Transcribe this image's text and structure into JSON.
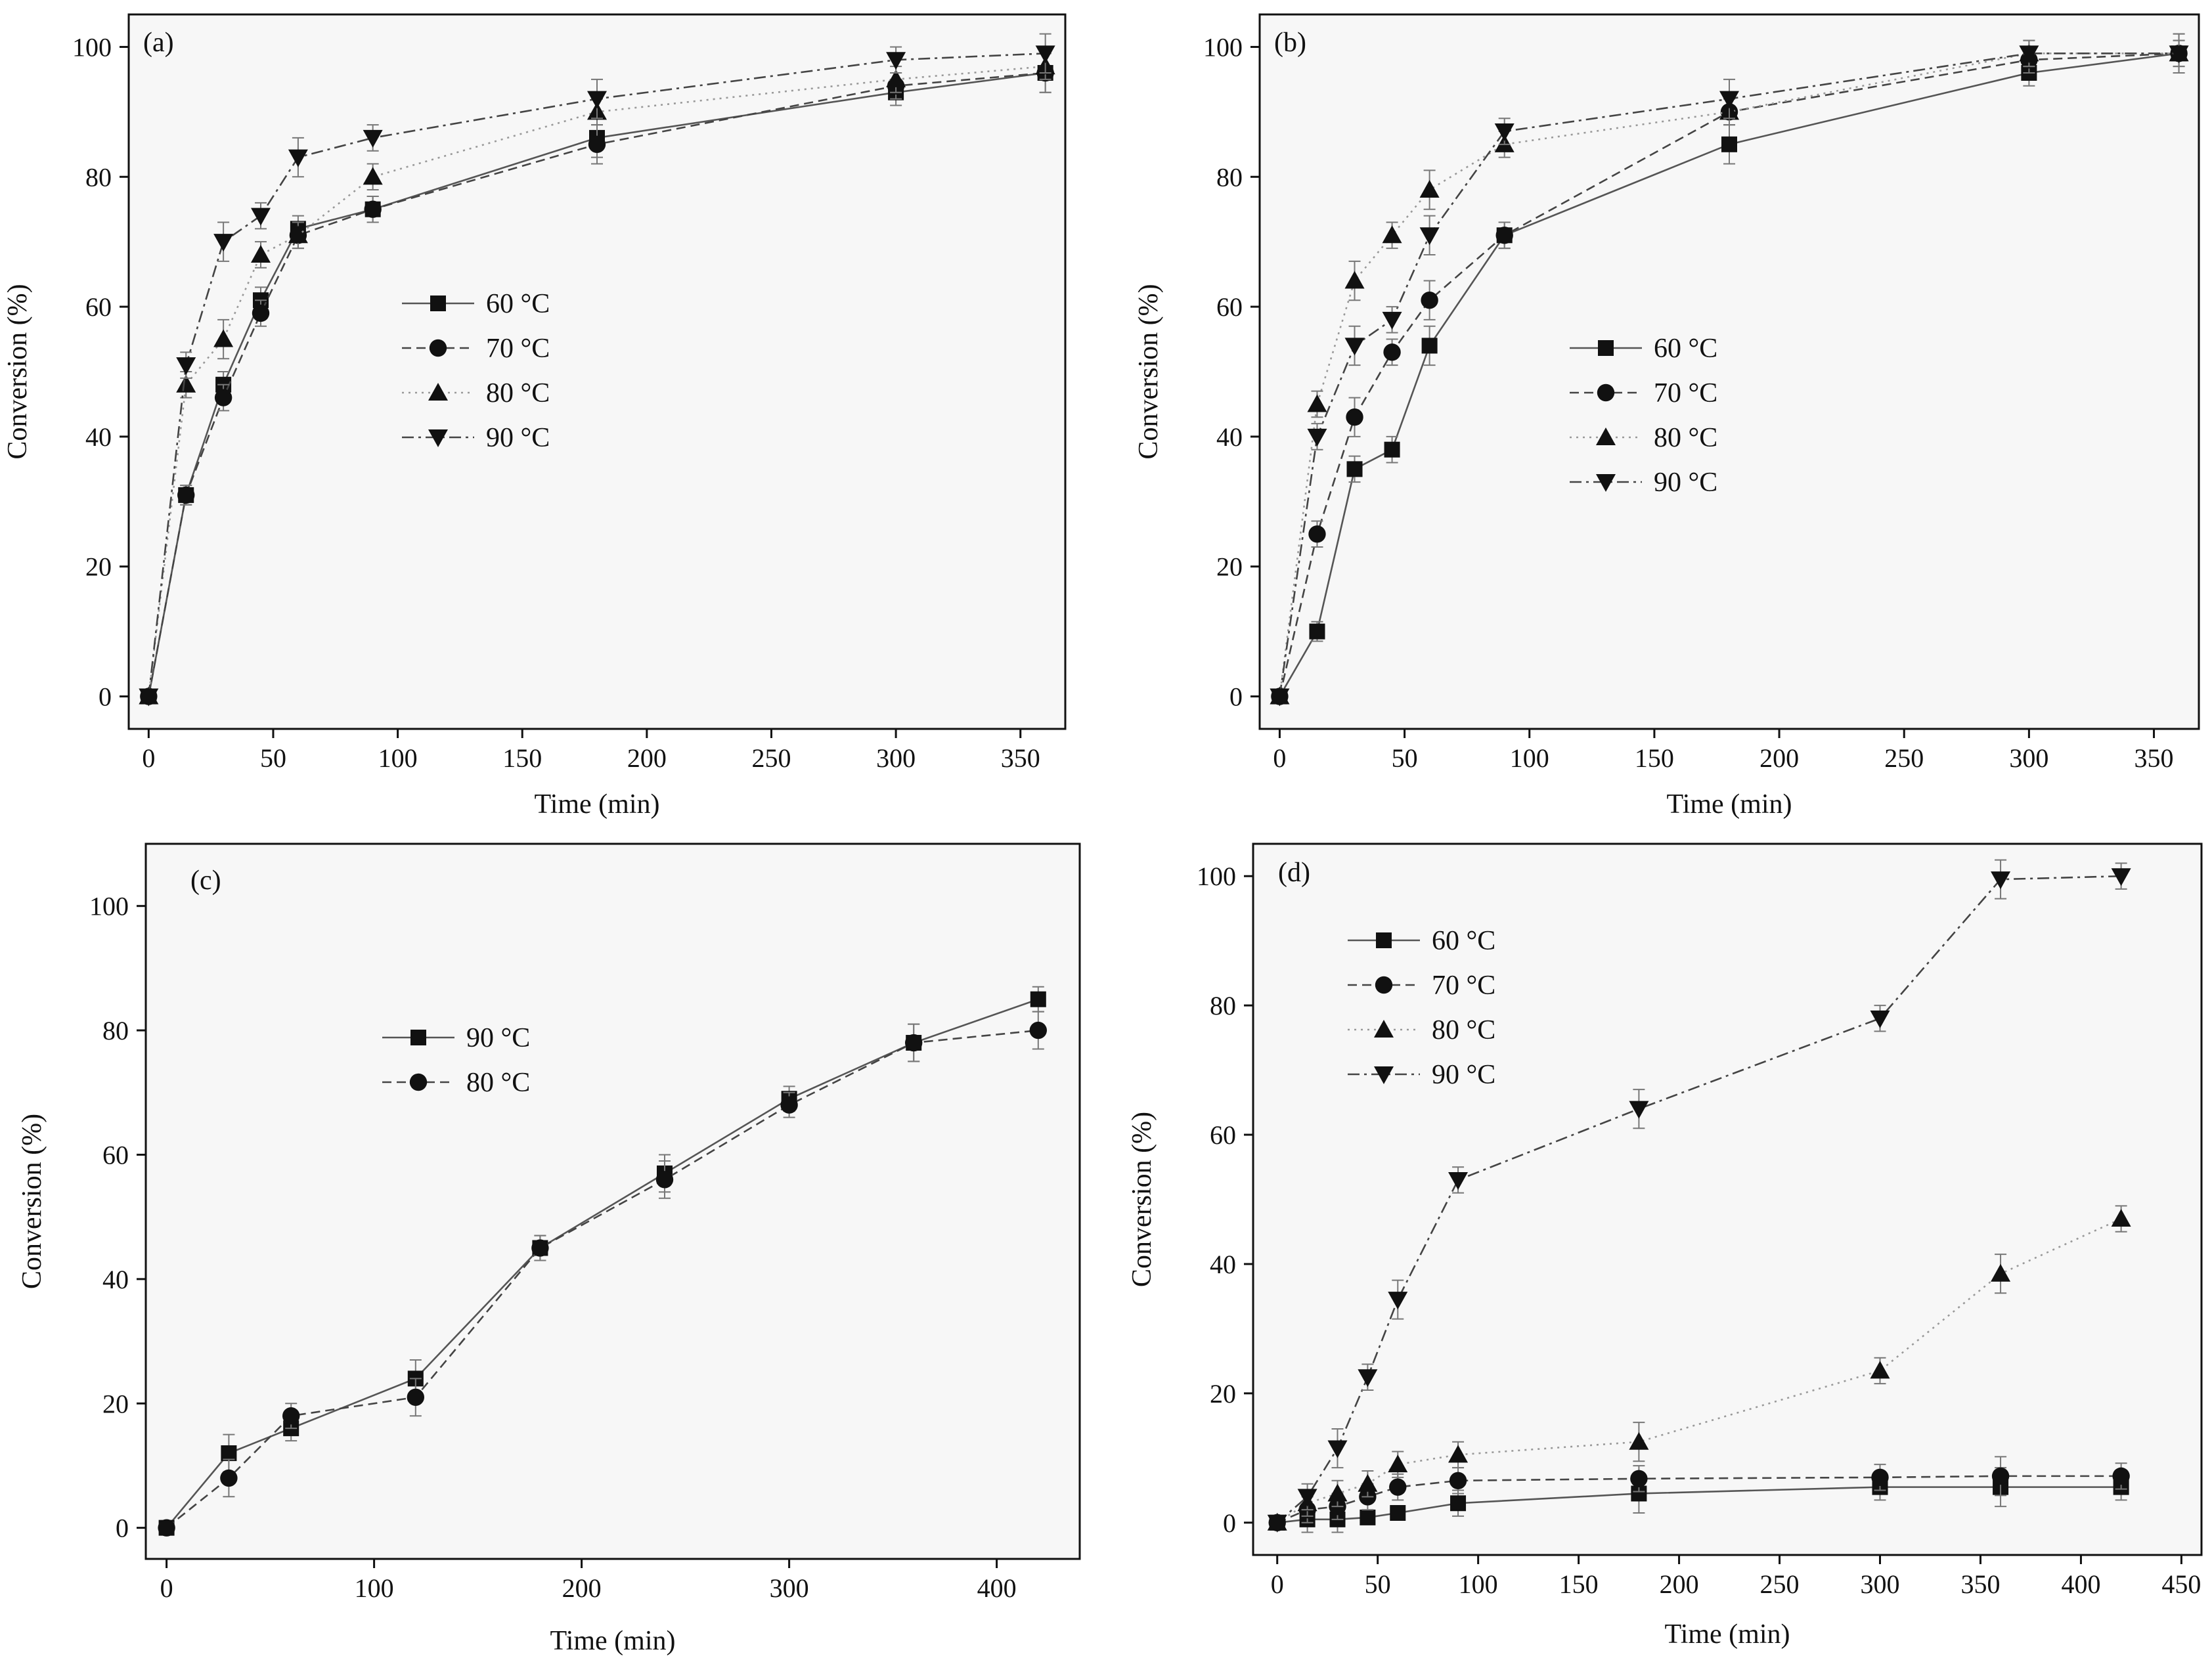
{
  "figure": {
    "colors": {
      "axis": "#111111",
      "marker": "#111111",
      "line_solid": "#555555",
      "line_dashed": "#444444",
      "line_dotted": "#999999",
      "panel_bg": "#f7f7f7"
    }
  },
  "chart_data": [
    {
      "id": "a",
      "type": "line",
      "panel_label": "(a)",
      "xlabel": "Time (min)",
      "ylabel": "Conversion (%)",
      "xlim": [
        -8,
        368
      ],
      "ylim": [
        -5,
        105
      ],
      "xticks": [
        0,
        50,
        100,
        150,
        200,
        250,
        300,
        350
      ],
      "yticks": [
        0,
        20,
        40,
        60,
        80,
        100
      ],
      "legend_position": "center-left",
      "x": [
        0,
        15,
        30,
        45,
        60,
        90,
        180,
        300,
        360
      ],
      "series": [
        {
          "name": "60 °C",
          "marker": "square",
          "line": "solid",
          "values": [
            0,
            31,
            48,
            61,
            72,
            75,
            86,
            93,
            96
          ],
          "errors": [
            0,
            1.5,
            2,
            2,
            2,
            2,
            3,
            2,
            3
          ]
        },
        {
          "name": "70 °C",
          "marker": "circle",
          "line": "dashed",
          "values": [
            0,
            31,
            46,
            59,
            71,
            75,
            85,
            94,
            96
          ],
          "errors": [
            0,
            1.5,
            2,
            2,
            2,
            2,
            3,
            2,
            3
          ]
        },
        {
          "name": "80 °C",
          "marker": "triangle-up",
          "line": "dotted",
          "values": [
            0,
            48,
            55,
            68,
            71,
            80,
            90,
            95,
            97
          ],
          "errors": [
            0,
            2,
            3,
            2,
            2,
            2,
            2,
            2,
            2
          ]
        },
        {
          "name": "90 °C",
          "marker": "triangle-down",
          "line": "dashdot",
          "values": [
            0,
            51,
            70,
            74,
            83,
            86,
            92,
            98,
            99
          ],
          "errors": [
            0,
            2,
            3,
            2,
            3,
            2,
            3,
            2,
            3
          ]
        }
      ]
    },
    {
      "id": "b",
      "type": "line",
      "panel_label": "(b)",
      "xlabel": "Time (min)",
      "ylabel": "Conversion (%)",
      "xlim": [
        -8,
        368
      ],
      "ylim": [
        -5,
        105
      ],
      "xticks": [
        0,
        50,
        100,
        150,
        200,
        250,
        300,
        350
      ],
      "yticks": [
        0,
        20,
        40,
        60,
        80,
        100
      ],
      "legend_position": "center",
      "x": [
        0,
        15,
        30,
        45,
        60,
        90,
        180,
        300,
        360
      ],
      "series": [
        {
          "name": "60 °C",
          "marker": "square",
          "line": "solid",
          "values": [
            0,
            10,
            35,
            38,
            54,
            71,
            85,
            96,
            99
          ],
          "errors": [
            0,
            1.5,
            2,
            2,
            3,
            2,
            3,
            2,
            3
          ]
        },
        {
          "name": "70 °C",
          "marker": "circle",
          "line": "dashed",
          "values": [
            0,
            25,
            43,
            53,
            61,
            71,
            90,
            98,
            99
          ],
          "errors": [
            0,
            2,
            3,
            2,
            3,
            2,
            2,
            2,
            2
          ]
        },
        {
          "name": "80 °C",
          "marker": "triangle-up",
          "line": "dotted",
          "values": [
            0,
            45,
            64,
            71,
            78,
            85,
            90,
            99,
            99
          ],
          "errors": [
            0,
            2,
            3,
            2,
            3,
            2,
            2,
            2,
            2
          ]
        },
        {
          "name": "90 °C",
          "marker": "triangle-down",
          "line": "dashdot",
          "values": [
            0,
            40,
            54,
            58,
            71,
            87,
            92,
            99,
            99
          ],
          "errors": [
            0,
            2,
            3,
            2,
            3,
            2,
            3,
            2,
            3
          ]
        }
      ]
    },
    {
      "id": "c",
      "type": "line",
      "panel_label": "(c)",
      "xlabel": "Time (min)",
      "ylabel": "Conversion (%)",
      "xlim": [
        -10,
        440
      ],
      "ylim": [
        -5,
        110
      ],
      "xticks": [
        0,
        100,
        200,
        300,
        400
      ],
      "yticks": [
        0,
        20,
        40,
        60,
        80,
        100
      ],
      "legend_position": "upper-left",
      "x": [
        0,
        30,
        60,
        120,
        180,
        240,
        300,
        360,
        420
      ],
      "series": [
        {
          "name": "90 °C",
          "marker": "square",
          "line": "solid",
          "values": [
            0,
            12,
            16,
            24,
            45,
            57,
            69,
            78,
            85
          ],
          "errors": [
            0,
            3,
            2,
            3,
            2,
            3,
            2,
            3,
            2
          ]
        },
        {
          "name": "80 °C",
          "marker": "circle",
          "line": "dashed",
          "values": [
            0,
            8,
            18,
            21,
            45,
            56,
            68,
            78,
            80
          ],
          "errors": [
            0,
            3,
            2,
            3,
            2,
            3,
            2,
            3,
            3
          ]
        }
      ]
    },
    {
      "id": "d",
      "type": "line",
      "panel_label": "(d)",
      "xlabel": "Time (min)",
      "ylabel": "Conversion (%)",
      "xlim": [
        -12,
        460
      ],
      "ylim": [
        -5,
        105
      ],
      "xticks": [
        0,
        50,
        100,
        150,
        200,
        250,
        300,
        350,
        400,
        450
      ],
      "yticks": [
        0,
        20,
        40,
        60,
        80,
        100
      ],
      "legend_position": "upper-left",
      "x": [
        0,
        15,
        30,
        45,
        60,
        90,
        180,
        300,
        360,
        420
      ],
      "series": [
        {
          "name": "60 °C",
          "marker": "square",
          "line": "solid",
          "values": [
            0,
            0.5,
            0.5,
            0.8,
            1.5,
            3,
            4.5,
            5.5,
            5.5,
            5.5
          ],
          "errors": [
            0,
            2,
            2,
            1,
            1,
            2,
            3,
            2,
            3,
            2
          ]
        },
        {
          "name": "70 °C",
          "marker": "circle",
          "line": "dashed",
          "values": [
            0,
            2,
            2.5,
            4,
            5.5,
            6.5,
            6.8,
            7,
            7.2,
            7.2
          ],
          "errors": [
            0,
            2,
            2,
            2,
            2,
            2,
            2,
            2,
            3,
            2
          ]
        },
        {
          "name": "80 °C",
          "marker": "triangle-up",
          "line": "dotted",
          "values": [
            0,
            3,
            4.5,
            6,
            9,
            10.5,
            12.5,
            23.5,
            38.5,
            47
          ],
          "errors": [
            0,
            2,
            2,
            2,
            2,
            2,
            3,
            2,
            3,
            2
          ]
        },
        {
          "name": "90 °C",
          "marker": "triangle-down",
          "line": "dashdot",
          "values": [
            0,
            4,
            11.5,
            22.5,
            34.5,
            53,
            64,
            78,
            99.5,
            100
          ],
          "errors": [
            0,
            2,
            3,
            2,
            3,
            2,
            3,
            2,
            3,
            2
          ]
        }
      ]
    }
  ]
}
